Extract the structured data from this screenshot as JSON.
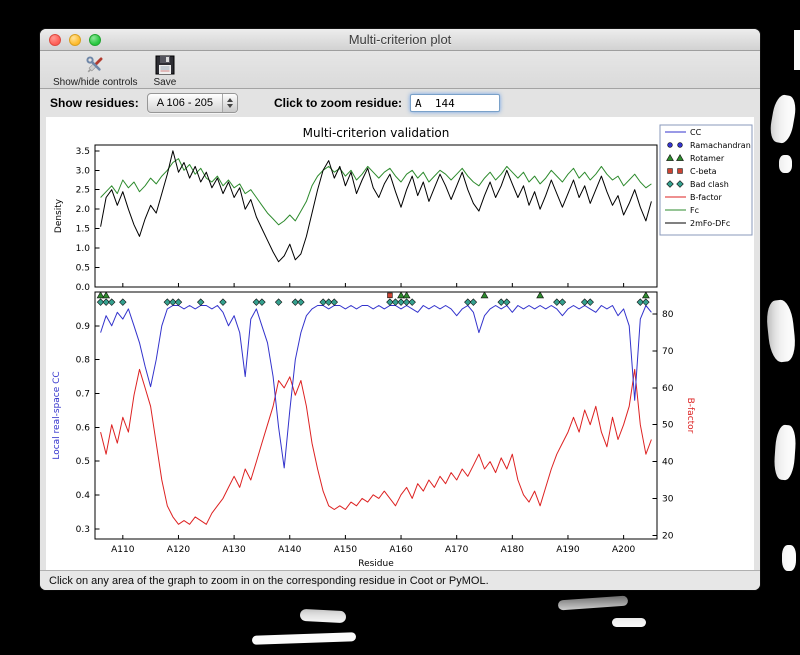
{
  "window": {
    "title": "Multi-criterion plot"
  },
  "toolbar": {
    "show_hide_label": "Show/hide controls",
    "save_label": "Save"
  },
  "controls": {
    "show_residues_label": "Show residues:",
    "residue_range_value": "A 106 - 205",
    "zoom_residue_label": "Click to zoom residue:",
    "zoom_residue_value": "A  144"
  },
  "statusbar": {
    "text": "Click on any area of the graph to zoom in on the corresponding residue in Coot or PyMOL."
  },
  "chart_data": {
    "type": "line",
    "title": "Multi-criterion validation",
    "xlabel": "Residue",
    "x_start": 106,
    "xlim": [
      105,
      206
    ],
    "xticks": [
      [
        110,
        "A110"
      ],
      [
        120,
        "A120"
      ],
      [
        130,
        "A130"
      ],
      [
        140,
        "A140"
      ],
      [
        150,
        "A150"
      ],
      [
        160,
        "A160"
      ],
      [
        170,
        "A170"
      ],
      [
        180,
        "A180"
      ],
      [
        190,
        "A190"
      ],
      [
        200,
        "A200"
      ]
    ],
    "top": {
      "ylabel": "Density",
      "ylim": [
        0,
        3.65
      ],
      "yticks": [
        0.0,
        0.5,
        1.0,
        1.5,
        2.0,
        2.5,
        3.0,
        3.5
      ],
      "series": [
        {
          "name": "Fc",
          "color": "#2e8b2e",
          "values": [
            2.3,
            2.45,
            2.6,
            2.4,
            2.75,
            2.55,
            2.7,
            2.45,
            2.6,
            2.8,
            2.65,
            2.85,
            3.0,
            3.2,
            3.3,
            3.0,
            3.15,
            2.9,
            3.05,
            2.8,
            2.7,
            2.85,
            2.6,
            2.75,
            2.55,
            2.65,
            2.4,
            2.5,
            2.3,
            2.1,
            1.9,
            1.75,
            1.6,
            1.7,
            1.85,
            1.7,
            1.95,
            2.2,
            2.6,
            2.85,
            3.0,
            3.1,
            2.95,
            3.05,
            2.85,
            3.0,
            2.75,
            2.9,
            3.1,
            2.95,
            2.8,
            2.95,
            3.05,
            2.85,
            2.7,
            2.9,
            3.0,
            2.8,
            2.95,
            2.7,
            2.85,
            3.0,
            2.9,
            2.75,
            2.9,
            3.05,
            2.85,
            2.7,
            2.6,
            2.8,
            2.95,
            2.75,
            2.9,
            3.1,
            2.95,
            2.8,
            2.95,
            2.7,
            2.85,
            2.65,
            2.8,
            3.0,
            2.85,
            2.7,
            2.9,
            3.05,
            2.8,
            2.95,
            2.75,
            2.9,
            3.1,
            2.9,
            2.75,
            2.85,
            2.6,
            2.75,
            2.9,
            2.7,
            2.55,
            2.65
          ]
        },
        {
          "name": "2mFo-DFc",
          "color": "#000000",
          "values": [
            1.55,
            2.3,
            2.5,
            2.1,
            2.45,
            2.0,
            1.6,
            1.3,
            1.75,
            2.1,
            1.9,
            2.4,
            2.9,
            3.5,
            2.95,
            3.2,
            2.8,
            3.1,
            2.7,
            2.95,
            2.55,
            2.8,
            2.4,
            2.7,
            2.3,
            2.55,
            2.0,
            2.25,
            1.8,
            1.5,
            1.2,
            0.9,
            0.65,
            0.8,
            1.1,
            0.7,
            0.85,
            1.3,
            1.9,
            2.5,
            3.0,
            3.25,
            2.8,
            3.1,
            2.6,
            2.95,
            2.4,
            2.75,
            3.05,
            2.55,
            2.3,
            2.65,
            2.9,
            2.45,
            2.05,
            2.5,
            2.85,
            2.35,
            2.7,
            2.2,
            2.55,
            2.9,
            2.6,
            2.25,
            2.6,
            2.95,
            2.5,
            2.15,
            1.95,
            2.35,
            2.7,
            2.3,
            2.6,
            3.0,
            2.65,
            2.3,
            2.6,
            2.1,
            2.45,
            2.0,
            2.35,
            2.75,
            2.4,
            2.05,
            2.4,
            2.75,
            2.3,
            2.6,
            2.15,
            2.5,
            2.85,
            2.45,
            2.1,
            2.35,
            1.85,
            2.15,
            2.5,
            2.05,
            1.7,
            2.2
          ]
        }
      ]
    },
    "bottom": {
      "ylabel_left": "Local real-space CC",
      "ylabel_right": "B-factor",
      "ylim_left": [
        0.27,
        1.0
      ],
      "yticks_left": [
        0.3,
        0.4,
        0.5,
        0.6,
        0.7,
        0.8,
        0.9
      ],
      "ylim_right": [
        19,
        86
      ],
      "yticks_right": [
        20,
        30,
        40,
        50,
        60,
        70,
        80
      ],
      "cc": {
        "name": "CC",
        "color": "#3333cc",
        "values": [
          0.88,
          0.93,
          0.9,
          0.94,
          0.92,
          0.95,
          0.9,
          0.85,
          0.78,
          0.72,
          0.8,
          0.9,
          0.95,
          0.96,
          0.96,
          0.95,
          0.96,
          0.95,
          0.96,
          0.96,
          0.95,
          0.96,
          0.94,
          0.9,
          0.93,
          0.88,
          0.75,
          0.92,
          0.95,
          0.9,
          0.85,
          0.75,
          0.6,
          0.48,
          0.65,
          0.8,
          0.88,
          0.93,
          0.95,
          0.96,
          0.96,
          0.95,
          0.96,
          0.96,
          0.95,
          0.96,
          0.95,
          0.96,
          0.96,
          0.95,
          0.96,
          0.95,
          0.96,
          0.96,
          0.95,
          0.96,
          0.95,
          0.94,
          0.96,
          0.95,
          0.96,
          0.95,
          0.96,
          0.95,
          0.93,
          0.95,
          0.96,
          0.94,
          0.88,
          0.93,
          0.95,
          0.96,
          0.95,
          0.96,
          0.94,
          0.96,
          0.95,
          0.96,
          0.95,
          0.96,
          0.95,
          0.96,
          0.95,
          0.93,
          0.95,
          0.96,
          0.95,
          0.96,
          0.95,
          0.94,
          0.96,
          0.95,
          0.96,
          0.93,
          0.95,
          0.9,
          0.68,
          0.92,
          0.96,
          0.94
        ]
      },
      "bfactor": {
        "name": "B-factor",
        "color": "#dd2222",
        "values": [
          48,
          42,
          50,
          45,
          52,
          48,
          58,
          65,
          60,
          55,
          45,
          35,
          28,
          25,
          23,
          24,
          23,
          25,
          24,
          23,
          26,
          28,
          30,
          33,
          36,
          33,
          38,
          35,
          40,
          45,
          50,
          55,
          62,
          60,
          63,
          58,
          62,
          55,
          45,
          38,
          32,
          28,
          27,
          28,
          27,
          29,
          28,
          30,
          29,
          31,
          30,
          32,
          30,
          28,
          31,
          33,
          30,
          34,
          32,
          35,
          33,
          36,
          34,
          37,
          35,
          38,
          36,
          39,
          42,
          38,
          40,
          37,
          41,
          38,
          42,
          35,
          31,
          29,
          32,
          28,
          33,
          38,
          42,
          45,
          48,
          52,
          48,
          54,
          50,
          55,
          48,
          44,
          52,
          46,
          50,
          55,
          65,
          50,
          42,
          46
        ]
      },
      "markers": {
        "bad_clash": {
          "shape": "diamond",
          "color": "#35a08e",
          "y": 0.97,
          "x": [
            106,
            107,
            108,
            110,
            118,
            119,
            120,
            124,
            128,
            134,
            135,
            138,
            141,
            142,
            146,
            147,
            148,
            158,
            159,
            160,
            161,
            162,
            172,
            173,
            178,
            179,
            188,
            189,
            193,
            194,
            203,
            204
          ]
        },
        "rotamer": {
          "shape": "triangle",
          "color": "#2e8b2e",
          "y": 0.99,
          "x": [
            106,
            107,
            160,
            161,
            175,
            185,
            204
          ]
        },
        "c_beta": {
          "shape": "square",
          "color": "#cc4433",
          "y": 0.99,
          "x": [
            158
          ]
        },
        "ramachandran": {
          "shape": "circle",
          "color": "#3333cc",
          "y": 0.99,
          "x": []
        }
      }
    },
    "legend": [
      {
        "label": "CC",
        "type": "line",
        "color": "#3333cc"
      },
      {
        "label": "Ramachandran",
        "type": "circle",
        "color": "#3333cc"
      },
      {
        "label": "Rotamer",
        "type": "triangle",
        "color": "#2e8b2e"
      },
      {
        "label": "C-beta",
        "type": "square",
        "color": "#cc4433"
      },
      {
        "label": "Bad clash",
        "type": "diamond",
        "color": "#35a08e"
      },
      {
        "label": "B-factor",
        "type": "line",
        "color": "#dd2222"
      },
      {
        "label": "Fc",
        "type": "line",
        "color": "#2e8b2e"
      },
      {
        "label": "2mFo-DFc",
        "type": "line",
        "color": "#000000"
      }
    ]
  }
}
